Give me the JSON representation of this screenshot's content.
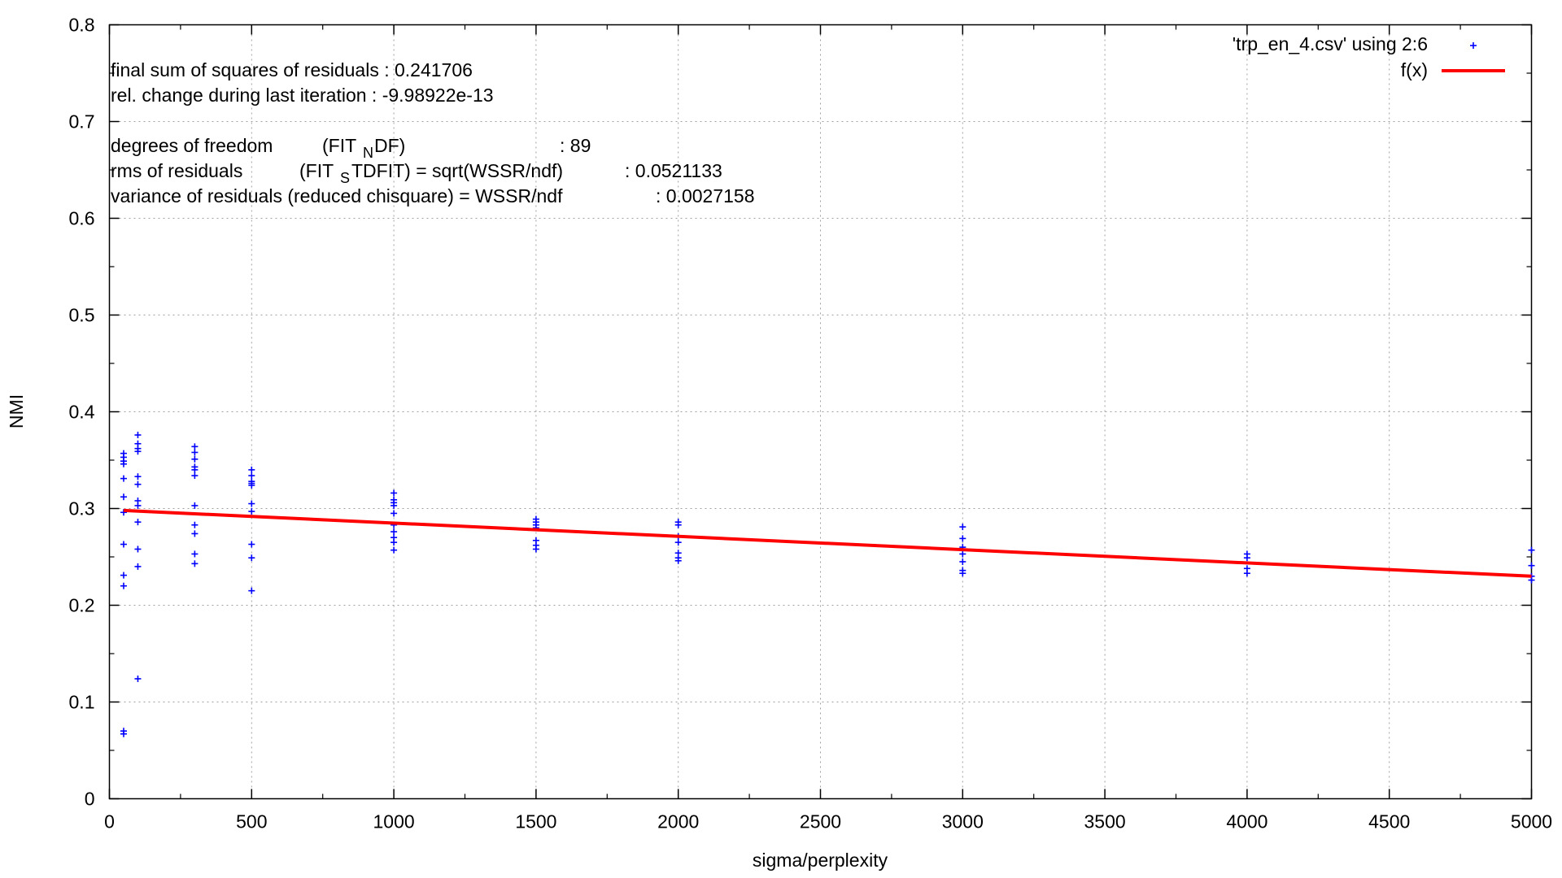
{
  "chart_data": {
    "type": "scatter",
    "title": "",
    "xlabel": "sigma/perplexity",
    "ylabel": "NMI",
    "xlim": [
      0,
      5000
    ],
    "ylim": [
      0,
      0.8
    ],
    "xticks": [
      0,
      500,
      1000,
      1500,
      2000,
      2500,
      3000,
      3500,
      4000,
      4500,
      5000
    ],
    "yticks": [
      0,
      0.1,
      0.2,
      0.3,
      0.4,
      0.5,
      0.6,
      0.7,
      0.8
    ],
    "grid": true,
    "legend_position": "top-right",
    "series": [
      {
        "name": "'trp_en_4.csv' using 2:6",
        "kind": "points",
        "color": "#0000ff",
        "points": [
          [
            50,
            0.357
          ],
          [
            50,
            0.353
          ],
          [
            50,
            0.349
          ],
          [
            50,
            0.346
          ],
          [
            50,
            0.331
          ],
          [
            50,
            0.312
          ],
          [
            50,
            0.296
          ],
          [
            50,
            0.263
          ],
          [
            50,
            0.231
          ],
          [
            50,
            0.22
          ],
          [
            50,
            0.07
          ],
          [
            50,
            0.067
          ],
          [
            100,
            0.376
          ],
          [
            100,
            0.367
          ],
          [
            100,
            0.362
          ],
          [
            100,
            0.359
          ],
          [
            100,
            0.333
          ],
          [
            100,
            0.325
          ],
          [
            100,
            0.308
          ],
          [
            100,
            0.303
          ],
          [
            100,
            0.286
          ],
          [
            100,
            0.258
          ],
          [
            100,
            0.24
          ],
          [
            100,
            0.124
          ],
          [
            300,
            0.364
          ],
          [
            300,
            0.358
          ],
          [
            300,
            0.351
          ],
          [
            300,
            0.343
          ],
          [
            300,
            0.34
          ],
          [
            300,
            0.334
          ],
          [
            300,
            0.303
          ],
          [
            300,
            0.283
          ],
          [
            300,
            0.274
          ],
          [
            300,
            0.253
          ],
          [
            300,
            0.243
          ],
          [
            500,
            0.34
          ],
          [
            500,
            0.334
          ],
          [
            500,
            0.328
          ],
          [
            500,
            0.326
          ],
          [
            500,
            0.324
          ],
          [
            500,
            0.305
          ],
          [
            500,
            0.297
          ],
          [
            500,
            0.263
          ],
          [
            500,
            0.249
          ],
          [
            500,
            0.215
          ],
          [
            1000,
            0.316
          ],
          [
            1000,
            0.309
          ],
          [
            1000,
            0.306
          ],
          [
            1000,
            0.303
          ],
          [
            1000,
            0.295
          ],
          [
            1000,
            0.283
          ],
          [
            1000,
            0.276
          ],
          [
            1000,
            0.27
          ],
          [
            1000,
            0.265
          ],
          [
            1000,
            0.257
          ],
          [
            1500,
            0.289
          ],
          [
            1500,
            0.286
          ],
          [
            1500,
            0.283
          ],
          [
            1500,
            0.28
          ],
          [
            1500,
            0.267
          ],
          [
            1500,
            0.262
          ],
          [
            1500,
            0.258
          ],
          [
            2000,
            0.286
          ],
          [
            2000,
            0.283
          ],
          [
            2000,
            0.271
          ],
          [
            2000,
            0.265
          ],
          [
            2000,
            0.254
          ],
          [
            2000,
            0.249
          ],
          [
            2000,
            0.246
          ],
          [
            3000,
            0.281
          ],
          [
            3000,
            0.269
          ],
          [
            3000,
            0.26
          ],
          [
            3000,
            0.253
          ],
          [
            3000,
            0.245
          ],
          [
            3000,
            0.236
          ],
          [
            3000,
            0.233
          ],
          [
            4000,
            0.253
          ],
          [
            4000,
            0.249
          ],
          [
            4000,
            0.238
          ],
          [
            4000,
            0.233
          ],
          [
            5000,
            0.257
          ],
          [
            5000,
            0.241
          ],
          [
            5000,
            0.23
          ],
          [
            5000,
            0.226
          ]
        ]
      },
      {
        "name": "f(x)",
        "kind": "line",
        "color": "#ff0000",
        "x": [
          50,
          5000
        ],
        "y": [
          0.298,
          0.23
        ]
      }
    ],
    "annotations": [
      "final sum of squares of residuals : 0.241706",
      "rel. change during last iteration : -9.98922e-13",
      "degrees of freedom",
      "(FIT",
      "N",
      "DF)",
      ": 89",
      "rms of residuals",
      "(FIT",
      "S",
      "TDFIT) = sqrt(WSSR/ndf)",
      ": 0.0521133",
      "variance of residuals (reduced chisquare) = WSSR/ndf",
      ": 0.0027158"
    ]
  }
}
